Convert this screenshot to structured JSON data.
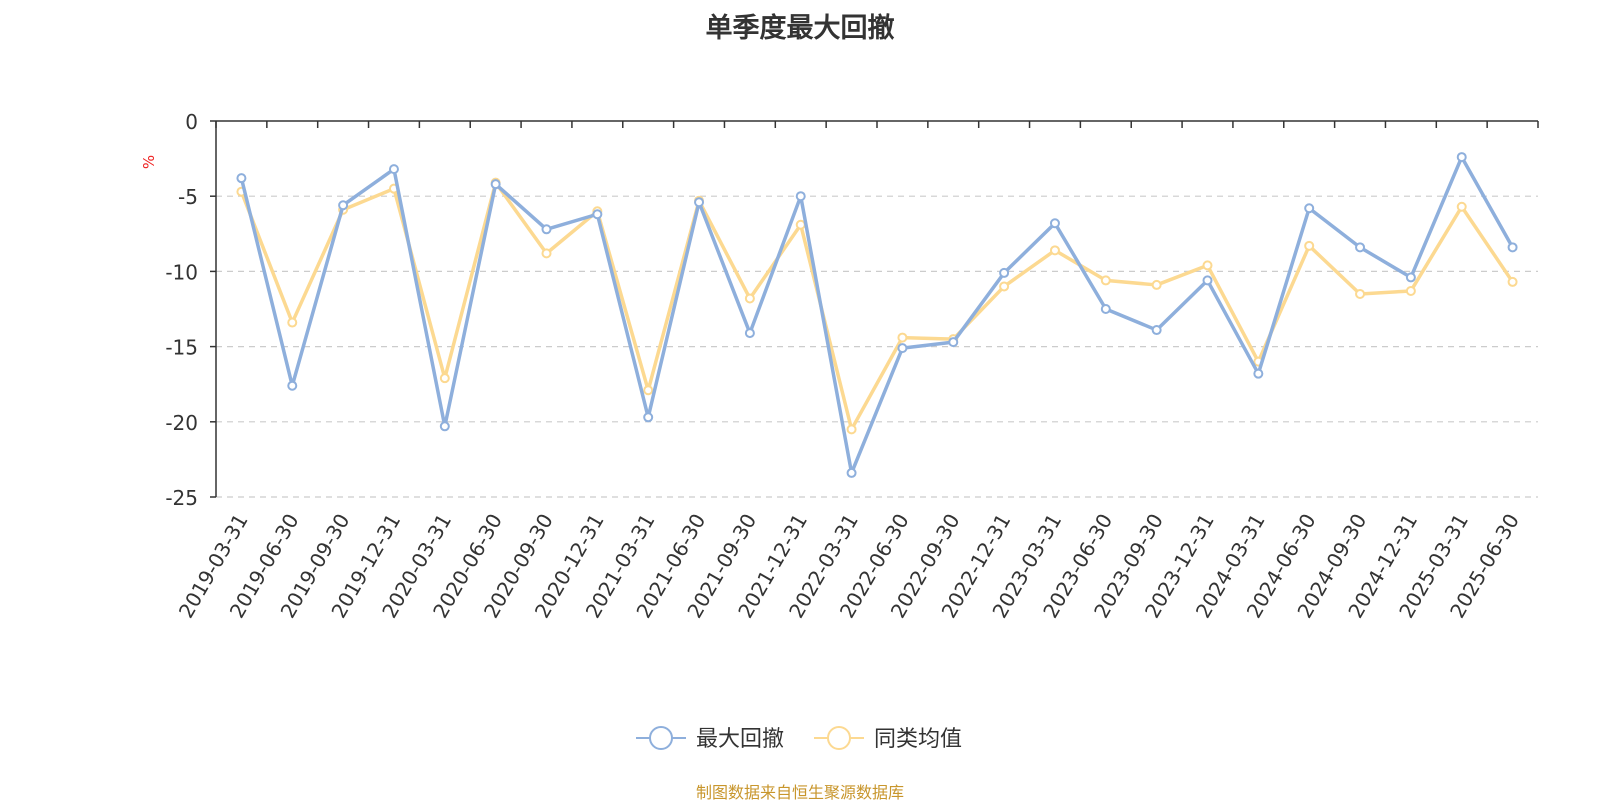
{
  "chart_data": {
    "type": "line",
    "title": "单季度最大回撤",
    "ylabel": "%",
    "ylim": [
      -25,
      0
    ],
    "yticks": [
      0,
      -5,
      -10,
      -15,
      -20,
      -25
    ],
    "grid": "horizontal dashed",
    "legend_position": "bottom-center",
    "x": [
      "2019-03-31",
      "2019-06-30",
      "2019-09-30",
      "2019-12-31",
      "2020-03-31",
      "2020-06-30",
      "2020-09-30",
      "2020-12-31",
      "2021-03-31",
      "2021-06-30",
      "2021-09-30",
      "2021-12-31",
      "2022-03-31",
      "2022-06-30",
      "2022-09-30",
      "2022-12-31",
      "2023-03-31",
      "2023-06-30",
      "2023-09-30",
      "2023-12-31",
      "2024-03-31",
      "2024-06-30",
      "2024-09-30",
      "2024-12-31",
      "2025-03-31",
      "2025-06-30"
    ],
    "series": [
      {
        "name": "最大回撤",
        "color": "#8eafdc",
        "values": [
          -3.8,
          -17.6,
          -5.6,
          -3.2,
          -20.3,
          -4.2,
          -7.2,
          -6.2,
          -19.7,
          -5.4,
          -14.1,
          -5.0,
          -23.4,
          -15.1,
          -14.7,
          -10.1,
          -6.8,
          -12.5,
          -13.9,
          -10.6,
          -16.8,
          -5.8,
          -8.4,
          -10.4,
          -2.4,
          -8.4
        ]
      },
      {
        "name": "同类均值",
        "color": "#fcd991",
        "values": [
          -4.7,
          -13.4,
          -5.9,
          -4.5,
          -17.1,
          -4.1,
          -8.8,
          -6.0,
          -17.9,
          -5.3,
          -11.8,
          -6.9,
          -20.5,
          -14.4,
          -14.5,
          -11.0,
          -8.6,
          -10.6,
          -10.9,
          -9.6,
          -16.0,
          -8.3,
          -11.5,
          -11.3,
          -5.7,
          -10.7
        ]
      }
    ]
  },
  "footer": {
    "source": "制图数据来自恒生聚源数据库"
  }
}
